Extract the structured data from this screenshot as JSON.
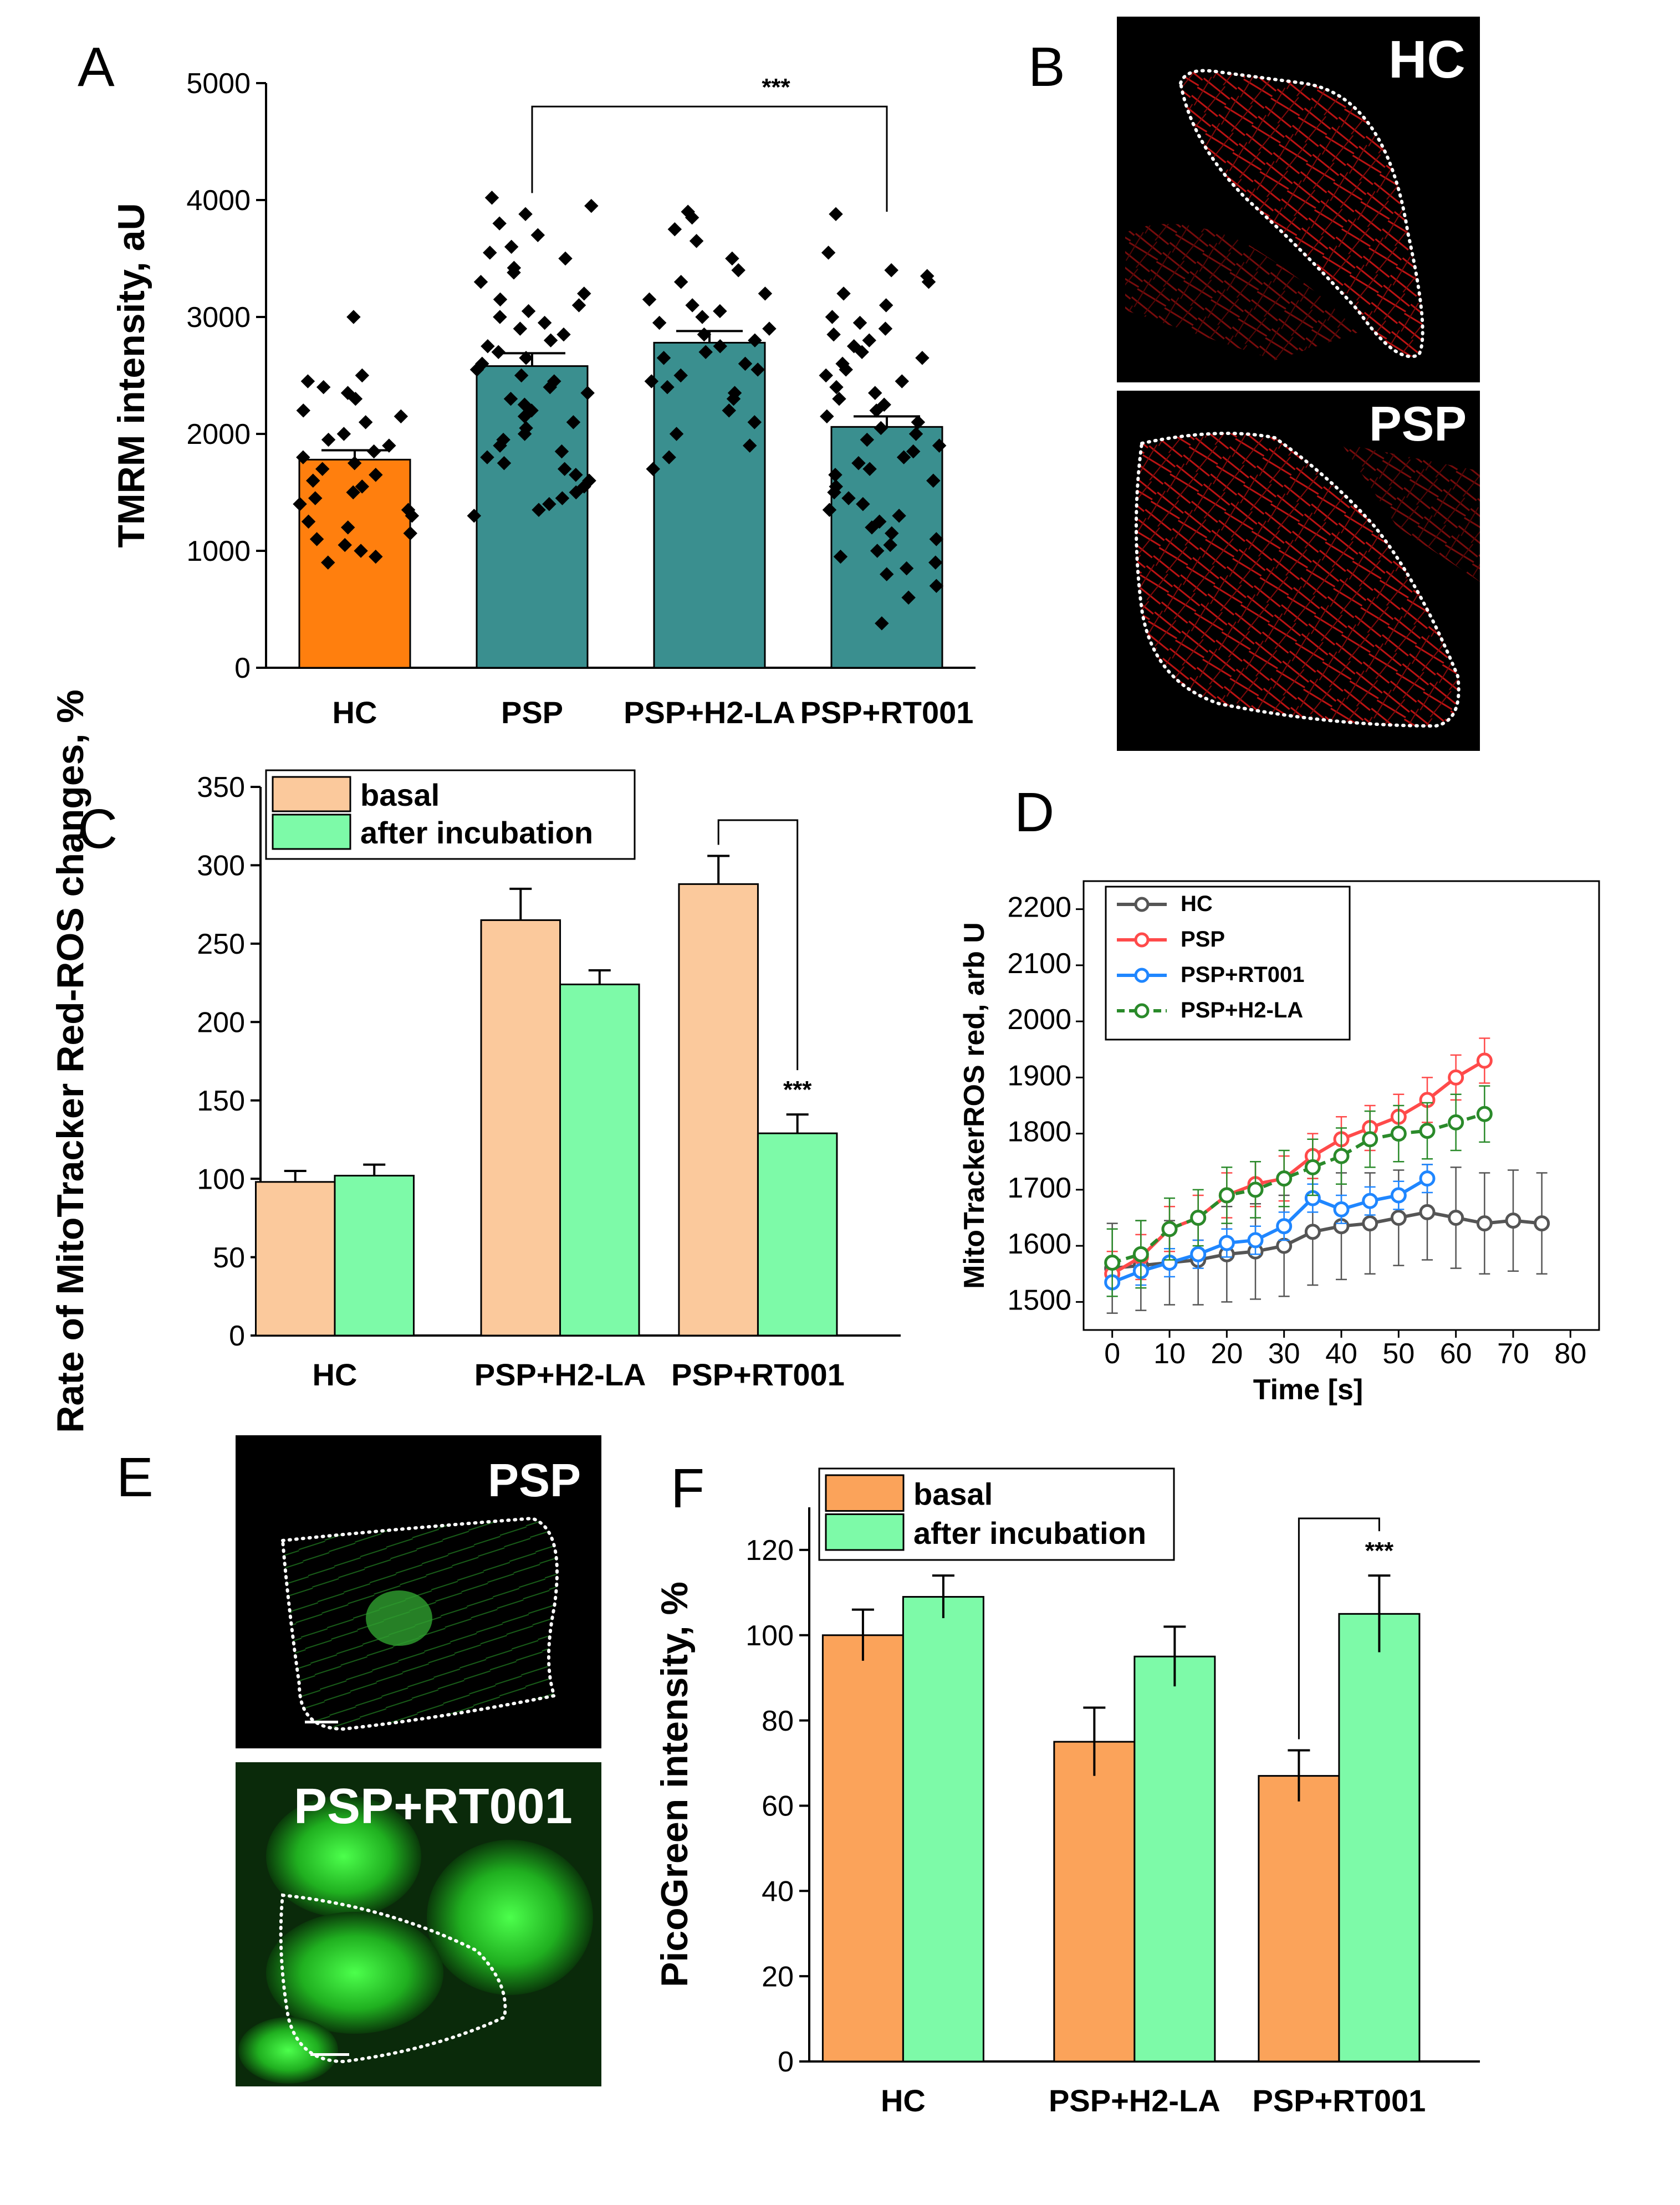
{
  "panels": {
    "A": {
      "letter": "A"
    },
    "B": {
      "letter": "B",
      "images": [
        {
          "label": "HC"
        },
        {
          "label": "PSP"
        }
      ]
    },
    "C": {
      "letter": "C"
    },
    "D": {
      "letter": "D"
    },
    "E": {
      "letter": "E",
      "images": [
        {
          "label": "PSP"
        },
        {
          "label": "PSP+RT001"
        }
      ]
    },
    "F": {
      "letter": "F"
    }
  },
  "chart_data": [
    {
      "id": "A",
      "type": "bar",
      "ylabel": "TMRM intensity, aU",
      "ylim": [
        0,
        5000
      ],
      "yticks": [
        0,
        1000,
        2000,
        3000,
        4000,
        5000
      ],
      "categories": [
        "HC",
        "PSP",
        "PSP+H2-LA",
        "PSP+RT001"
      ],
      "values": [
        1780,
        2580,
        2780,
        2060
      ],
      "errors": [
        80,
        110,
        100,
        90
      ],
      "colors": [
        "#ff7f0e",
        "#3a8f8f",
        "#3a8f8f",
        "#3a8f8f"
      ],
      "significance": [
        {
          "from": "PSP",
          "to": "PSP+RT001",
          "label": "***"
        }
      ],
      "points": [
        [
          3000,
          2500,
          2450,
          2400,
          2350,
          2300,
          2200,
          2150,
          2100,
          2000,
          1950,
          1900,
          1850,
          1800,
          1750,
          1700,
          1650,
          1600,
          1550,
          1500,
          1450,
          1400,
          1350,
          1300,
          1250,
          1200,
          1150,
          1100,
          1050,
          1000,
          950,
          900
        ],
        [
          4020,
          3950,
          3880,
          3800,
          3700,
          3600,
          3550,
          3500,
          3420,
          3380,
          3300,
          3200,
          3150,
          3100,
          3050,
          3000,
          2950,
          2900,
          2850,
          2800,
          2750,
          2700,
          2650,
          2600,
          2550,
          2500,
          2450,
          2400,
          2350,
          2300,
          2250,
          2200,
          2150,
          2100,
          2050,
          2000,
          1950,
          1900,
          1850,
          1800,
          1750,
          1700,
          1650,
          1600,
          1550,
          1500,
          1450,
          1400,
          1350,
          1300
        ],
        [
          3900,
          3850,
          3750,
          3650,
          3500,
          3400,
          3300,
          3200,
          3150,
          3100,
          3050,
          3000,
          2950,
          2900,
          2850,
          2800,
          2750,
          2700,
          2650,
          2600,
          2550,
          2500,
          2450,
          2400,
          2350,
          2300,
          2200,
          2100,
          2000,
          1900,
          1800,
          1700
        ],
        [
          3880,
          3550,
          3400,
          3350,
          3300,
          3200,
          3100,
          3000,
          2950,
          2900,
          2850,
          2800,
          2750,
          2700,
          2650,
          2600,
          2550,
          2500,
          2450,
          2400,
          2350,
          2300,
          2250,
          2200,
          2150,
          2100,
          2050,
          2000,
          1950,
          1900,
          1850,
          1800,
          1750,
          1700,
          1650,
          1600,
          1550,
          1500,
          1450,
          1400,
          1350,
          1300,
          1250,
          1200,
          1150,
          1100,
          1050,
          1000,
          950,
          900,
          850,
          800,
          700,
          600,
          380
        ]
      ]
    },
    {
      "id": "C",
      "type": "bar",
      "ylabel": "Rate of MitoTracker Red-ROS changes, %",
      "ylim": [
        0,
        350
      ],
      "yticks": [
        0,
        50,
        100,
        150,
        200,
        250,
        300,
        350
      ],
      "categories": [
        "HC",
        "PSP+H2-LA",
        "PSP+RT001"
      ],
      "series": [
        {
          "name": "basal",
          "color": "#fbc99c",
          "values": [
            98,
            265,
            288
          ],
          "errors": [
            7,
            20,
            18
          ]
        },
        {
          "name": "after incubation",
          "color": "#7dfaa8",
          "values": [
            102,
            224,
            129
          ],
          "errors": [
            7,
            9,
            12
          ]
        }
      ],
      "significance": [
        {
          "label": "***"
        }
      ]
    },
    {
      "id": "D",
      "type": "line",
      "xlabel": "Time [s]",
      "ylabel": "MitoTrackerROS red, arb U",
      "xlim": [
        -5,
        85
      ],
      "ylim": [
        1450,
        2250
      ],
      "xticks": [
        0,
        10,
        20,
        30,
        40,
        50,
        60,
        70,
        80
      ],
      "yticks": [
        1500,
        1600,
        1700,
        1800,
        1900,
        2000,
        2100,
        2200
      ],
      "legend_position": "top-left",
      "series": [
        {
          "name": "HC",
          "color": "#555555",
          "dashed": false,
          "x": [
            0,
            5,
            10,
            15,
            20,
            25,
            30,
            35,
            40,
            45,
            50,
            55,
            60,
            65,
            70,
            75
          ],
          "y": [
            1560,
            1565,
            1570,
            1575,
            1585,
            1590,
            1600,
            1625,
            1635,
            1640,
            1650,
            1660,
            1650,
            1640,
            1645,
            1640
          ],
          "err": [
            80,
            80,
            75,
            80,
            85,
            85,
            90,
            95,
            95,
            90,
            85,
            85,
            90,
            90,
            90,
            90
          ]
        },
        {
          "name": "PSP",
          "color": "#ff4a4a",
          "dashed": false,
          "x": [
            0,
            5,
            10,
            15,
            20,
            25,
            30,
            35,
            40,
            45,
            50,
            55,
            60,
            65
          ],
          "y": [
            1550,
            1580,
            1630,
            1650,
            1690,
            1710,
            1720,
            1760,
            1790,
            1810,
            1830,
            1860,
            1900,
            1930
          ],
          "err": [
            40,
            40,
            40,
            40,
            40,
            40,
            40,
            40,
            40,
            40,
            40,
            40,
            40,
            40
          ]
        },
        {
          "name": "PSP+RT001",
          "color": "#1f86ff",
          "dashed": false,
          "x": [
            0,
            5,
            10,
            15,
            20,
            25,
            30,
            35,
            40,
            45,
            50,
            55
          ],
          "y": [
            1535,
            1555,
            1570,
            1585,
            1605,
            1610,
            1635,
            1685,
            1665,
            1680,
            1690,
            1720
          ],
          "err": [
            25,
            25,
            25,
            25,
            25,
            25,
            25,
            25,
            25,
            25,
            25,
            25
          ]
        },
        {
          "name": "PSP+H2-LA",
          "color": "#2a8a2a",
          "dashed": true,
          "x": [
            0,
            5,
            10,
            15,
            20,
            25,
            30,
            35,
            40,
            45,
            50,
            55,
            60,
            65
          ],
          "y": [
            1570,
            1585,
            1630,
            1650,
            1690,
            1700,
            1720,
            1740,
            1760,
            1790,
            1800,
            1805,
            1820,
            1835
          ],
          "err": [
            60,
            60,
            55,
            50,
            50,
            50,
            50,
            50,
            50,
            50,
            50,
            50,
            50,
            50
          ]
        }
      ]
    },
    {
      "id": "F",
      "type": "bar",
      "ylabel": "PicoGreen intensity, %",
      "ylim": [
        0,
        130
      ],
      "yticks": [
        0,
        20,
        40,
        60,
        80,
        100,
        120
      ],
      "categories": [
        "HC",
        "PSP+H2-LA",
        "PSP+RT001"
      ],
      "series": [
        {
          "name": "basal",
          "color": "#fba35a",
          "values": [
            100,
            75,
            67
          ],
          "errors": [
            6,
            8,
            6
          ]
        },
        {
          "name": "after incubation",
          "color": "#7dfaa8",
          "values": [
            109,
            95,
            105
          ],
          "errors": [
            5,
            7,
            9
          ]
        }
      ],
      "significance": [
        {
          "label": "***"
        }
      ]
    }
  ]
}
